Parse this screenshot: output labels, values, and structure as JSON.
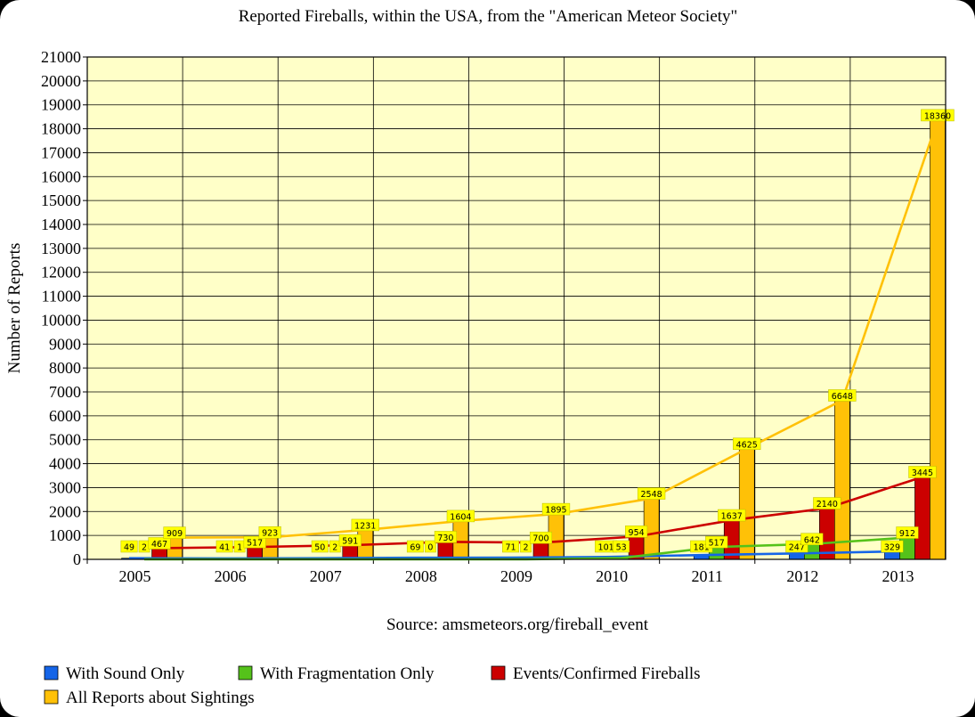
{
  "chart_data": {
    "type": "bar",
    "title": "Reported Fireballs, within the USA, from the \"American Meteor Society\"",
    "xlabel": "Source: amsmeteors.org/fireball_event",
    "ylabel": "Number of Reports",
    "ylim": [
      0,
      21000
    ],
    "yticks": [
      0,
      1000,
      2000,
      3000,
      4000,
      5000,
      6000,
      7000,
      8000,
      9000,
      10000,
      11000,
      12000,
      13000,
      14000,
      15000,
      16000,
      17000,
      18000,
      19000,
      20000,
      21000
    ],
    "categories": [
      "2005",
      "2006",
      "2007",
      "2008",
      "2009",
      "2010",
      "2011",
      "2012",
      "2013"
    ],
    "series": [
      {
        "name": "With Sound Only",
        "color": "#1565e8",
        "values": [
          49,
          41,
          50,
          69,
          71,
          101,
          181,
          247,
          329
        ]
      },
      {
        "name": "With Fragmentation Only",
        "color": "#55c21a",
        "values": [
          2,
          1,
          2,
          0,
          2,
          53,
          517,
          642,
          912
        ]
      },
      {
        "name": "Events/Confirmed Fireballs",
        "color": "#cc0000",
        "values": [
          467,
          517,
          591,
          730,
          700,
          954,
          1637,
          2140,
          3445
        ]
      },
      {
        "name": "All Reports about Sightings",
        "color": "#ffc107",
        "values": [
          909,
          923,
          1231,
          1604,
          1895,
          2548,
          4625,
          6648,
          18360
        ]
      }
    ],
    "trend_lines": true,
    "data_labels": true,
    "grid": true,
    "legend_position": "bottom",
    "plot_background": "#ffffc8"
  }
}
